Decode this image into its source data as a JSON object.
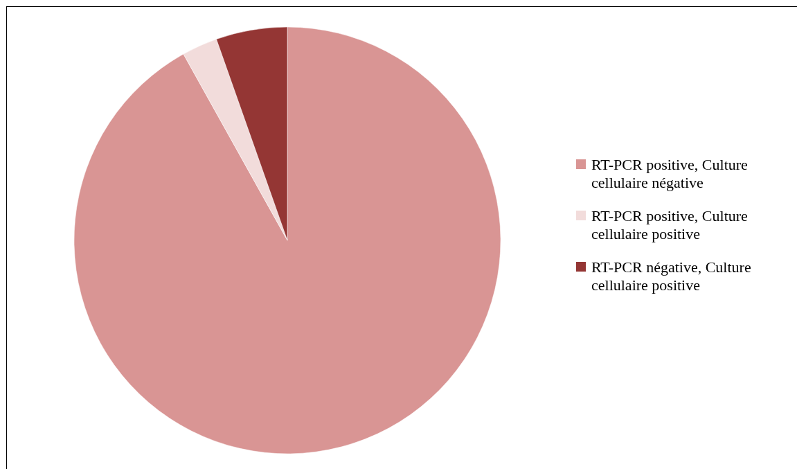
{
  "chart_data": {
    "type": "pie",
    "categories": [
      "RT-PCR positive, Culture cellulaire négative",
      "RT-PCR positive, Culture cellulaire positive",
      "RT-PCR négative, Culture cellulaire positive"
    ],
    "values": [
      91.9,
      2.7,
      5.4
    ],
    "colors": [
      "#d99594",
      "#f2dcdb",
      "#943634"
    ],
    "legend": "right"
  }
}
